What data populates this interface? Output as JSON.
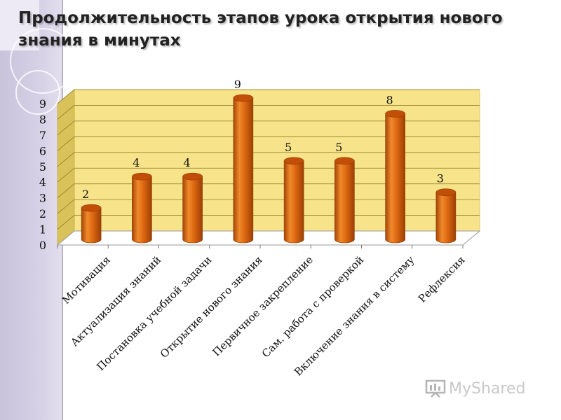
{
  "slide": {
    "title": "Продолжительность этапов урока открытия нового знания в минутах"
  },
  "watermark": {
    "text": "MyShared",
    "icon": "presentation-board-icon"
  },
  "colors": {
    "bar_front": "#d8620d",
    "bar_light": "#f08a2c",
    "bar_top": "#c24f08",
    "floor": "#ffffff",
    "wall": "#f6e38a",
    "wall_side": "#d9c25a",
    "grid": "#8f7e2a"
  },
  "chart_data": {
    "type": "bar",
    "style": "3d-cylinder",
    "categories": [
      "Мотивация",
      "Актуализация знаний",
      "Постановка учебной задачи",
      "Открытие нового знания",
      "Первичное закрепление",
      "Сам. работа с проверкой",
      "Включение знания в систему",
      "Рефлексия"
    ],
    "values": [
      2,
      4,
      4,
      9,
      5,
      5,
      8,
      3
    ],
    "data_labels": [
      "2",
      "4",
      "4",
      "9",
      "5",
      "5",
      "8",
      "3"
    ],
    "y_ticks": [
      "0",
      "1",
      "2",
      "3",
      "4",
      "5",
      "6",
      "7",
      "8",
      "9"
    ],
    "ylim": [
      0,
      9
    ],
    "grid": true,
    "legend": "none"
  }
}
